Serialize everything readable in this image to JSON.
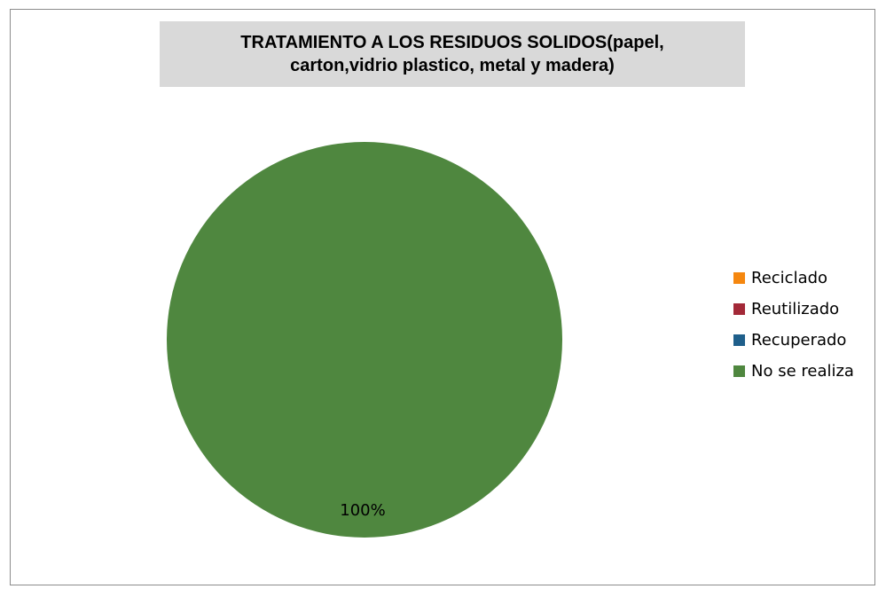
{
  "chart_data": {
    "type": "pie",
    "title": "TRATAMIENTO A LOS RESIDUOS SOLIDOS(papel, carton,vidrio plastico, metal y madera)",
    "title_lines": [
      "TRATAMIENTO A LOS RESIDUOS SOLIDOS(papel,",
      "carton,vidrio plastico, metal y madera)"
    ],
    "categories": [
      "Reciclado",
      "Reutilizado",
      "Recuperado",
      "No se realiza"
    ],
    "values": [
      0,
      0,
      0,
      100
    ],
    "data_labels": [
      "",
      "",
      "",
      "100%"
    ],
    "colors": [
      "#f5870f",
      "#a32938",
      "#1f5f8b",
      "#4f873f"
    ],
    "legend_position": "right"
  }
}
